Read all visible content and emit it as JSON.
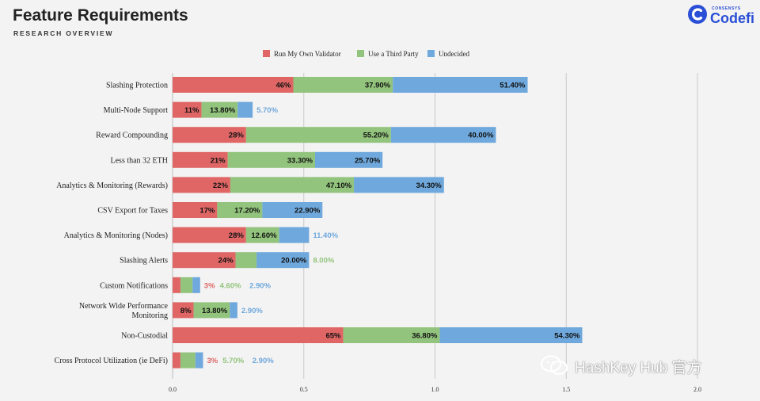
{
  "header": {
    "title": "Feature Requirements",
    "subtitle": "RESEARCH OVERVIEW"
  },
  "logo": {
    "small_text": "CONSENSYS",
    "brand_text": "Codefi",
    "color": "#2a4fd6"
  },
  "watermark": {
    "text": "HashKey Hub 官方"
  },
  "chart_data": {
    "type": "bar",
    "orientation": "horizontal",
    "stacked": true,
    "xlim": [
      0,
      2.0
    ],
    "xticks": [
      "0.0",
      "0.5",
      "1.0",
      "1.5",
      "2.0"
    ],
    "grid": true,
    "legend_position": "top-center",
    "categories": [
      "Slashing Protection",
      "Multi-Node Support",
      "Reward Compounding",
      "Less than 32 ETH",
      "Analytics & Monitoring (Rewards)",
      "CSV Export for Taxes",
      "Analytics & Monitoring (Nodes)",
      "Slashing Alerts",
      "Custom Notifications",
      "Network Wide Performance Monitoring",
      "Non-Custodial",
      "Cross Protocol Utilization (ie DeFi)"
    ],
    "category_lines": [
      [
        "Slashing Protection"
      ],
      [
        "Multi-Node Support"
      ],
      [
        "Reward Compounding"
      ],
      [
        "Less than 32 ETH"
      ],
      [
        "Analytics & Monitoring (Rewards)"
      ],
      [
        "CSV Export for Taxes"
      ],
      [
        "Analytics & Monitoring (Nodes)"
      ],
      [
        "Slashing Alerts"
      ],
      [
        "Custom Notifications"
      ],
      [
        "Network Wide Performance",
        "Monitoring"
      ],
      [
        "Non-Custodial"
      ],
      [
        "Cross Protocol Utilization (ie DeFi)"
      ]
    ],
    "series": [
      {
        "name": "Run My Own Validator",
        "color": "#e06666",
        "label_color": "#111111",
        "values": [
          0.46,
          0.11,
          0.28,
          0.21,
          0.22,
          0.17,
          0.28,
          0.24,
          0.03,
          0.08,
          0.65,
          0.03
        ],
        "labels": [
          "46%",
          "11%",
          "28%",
          "21%",
          "22%",
          "17%",
          "28%",
          "24%",
          "3%",
          "8%",
          "65%",
          "3%"
        ]
      },
      {
        "name": "Use a Third Party",
        "color": "#93c47d",
        "label_color": "#111111",
        "values": [
          0.379,
          0.138,
          0.552,
          0.333,
          0.471,
          0.172,
          0.126,
          0.08,
          0.046,
          0.138,
          0.368,
          0.057
        ],
        "labels": [
          "37.90%",
          "13.80%",
          "55.20%",
          "33.30%",
          "47.10%",
          "17.20%",
          "12.60%",
          "8.00%",
          "4.60%",
          "13.80%",
          "36.80%",
          "5.70%"
        ]
      },
      {
        "name": "Undecided",
        "color": "#6fa8dc",
        "label_color": "#111111",
        "values": [
          0.514,
          0.057,
          0.4,
          0.257,
          0.343,
          0.229,
          0.114,
          0.2,
          0.029,
          0.029,
          0.543,
          0.029
        ],
        "labels": [
          "51.40%",
          "5.70%",
          "40.00%",
          "25.70%",
          "34.30%",
          "22.90%",
          "11.40%",
          "20.00%",
          "2.90%",
          "2.90%",
          "54.30%",
          "2.90%"
        ]
      }
    ]
  }
}
